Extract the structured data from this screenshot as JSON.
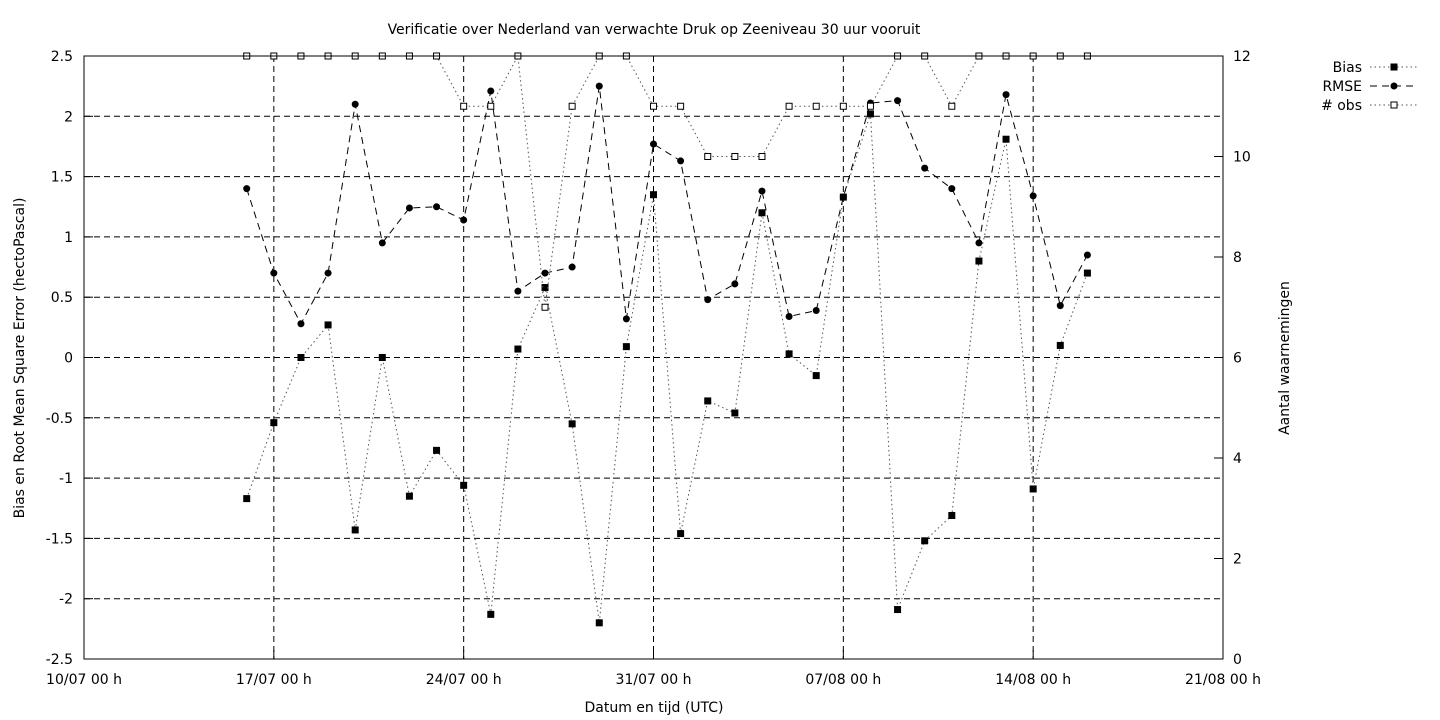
{
  "chart_data": {
    "type": "line",
    "title": "Verificatie over Nederland van verwachte Druk op Zeeniveau 30 uur vooruit",
    "xlabel": "Datum en tijd (UTC)",
    "ylabel": "Bias en Root Mean Square Error (hectoPascal)",
    "y2label": "Aantal waarnemingen",
    "x_unit": "days",
    "xlim": [
      0,
      42
    ],
    "ylim": [
      -2.5,
      2.5
    ],
    "y2lim": [
      0,
      12
    ],
    "x_ticks": [
      {
        "x": 0,
        "label": "10/07 00 h"
      },
      {
        "x": 7,
        "label": "17/07 00 h"
      },
      {
        "x": 14,
        "label": "24/07 00 h"
      },
      {
        "x": 21,
        "label": "31/07 00 h"
      },
      {
        "x": 28,
        "label": "07/08 00 h"
      },
      {
        "x": 35,
        "label": "14/08 00 h"
      },
      {
        "x": 42,
        "label": "21/08 00 h"
      }
    ],
    "y_ticks": [
      {
        "v": -2.5,
        "label": "-2.5"
      },
      {
        "v": -2,
        "label": "-2"
      },
      {
        "v": -1.5,
        "label": "-1.5"
      },
      {
        "v": -1,
        "label": "-1"
      },
      {
        "v": -0.5,
        "label": "-0.5"
      },
      {
        "v": 0,
        "label": "0"
      },
      {
        "v": 0.5,
        "label": "0.5"
      },
      {
        "v": 1,
        "label": "1"
      },
      {
        "v": 1.5,
        "label": "1.5"
      },
      {
        "v": 2,
        "label": "2"
      },
      {
        "v": 2.5,
        "label": "2.5"
      }
    ],
    "y2_ticks": [
      {
        "v": 0,
        "label": "0"
      },
      {
        "v": 2,
        "label": "2"
      },
      {
        "v": 4,
        "label": "4"
      },
      {
        "v": 6,
        "label": "6"
      },
      {
        "v": 8,
        "label": "8"
      },
      {
        "v": 10,
        "label": "10"
      },
      {
        "v": 12,
        "label": "12"
      }
    ],
    "grid": true,
    "legend_position": "top-right outside",
    "x": [
      6,
      7,
      8,
      9,
      10,
      11,
      12,
      13,
      14,
      15,
      16,
      17,
      18,
      19,
      20,
      21,
      22,
      23,
      24,
      25,
      26,
      27,
      28,
      29,
      30,
      31,
      32,
      33,
      34,
      35,
      36,
      37
    ],
    "series": [
      {
        "name": "Bias",
        "axis": "left",
        "style": "dotted",
        "marker": "filled-square",
        "values": [
          -1.17,
          -0.54,
          0.0,
          0.27,
          -1.43,
          0.0,
          -1.15,
          -0.77,
          -1.06,
          -2.13,
          0.07,
          0.58,
          -0.55,
          -2.2,
          0.09,
          1.35,
          -1.46,
          -0.36,
          -0.46,
          1.2,
          0.03,
          -0.15,
          1.33,
          2.02,
          -2.09,
          -1.52,
          -1.31,
          0.8,
          1.81,
          -1.09,
          0.1,
          0.7
        ]
      },
      {
        "name": "RMSE",
        "axis": "left",
        "style": "dashed",
        "marker": "filled-circle",
        "values": [
          1.4,
          0.7,
          0.28,
          0.7,
          2.1,
          0.95,
          1.24,
          1.25,
          1.14,
          2.21,
          0.55,
          0.7,
          0.75,
          2.25,
          0.32,
          1.77,
          1.63,
          0.48,
          0.61,
          1.38,
          0.34,
          0.39,
          1.33,
          2.11,
          2.13,
          1.57,
          1.4,
          0.95,
          2.18,
          1.34,
          0.43,
          0.85
        ]
      },
      {
        "name": "# obs",
        "axis": "right",
        "style": "dotted",
        "marker": "open-square",
        "values": [
          12,
          12,
          12,
          12,
          12,
          12,
          12,
          12,
          11,
          11,
          12,
          7,
          11,
          12,
          12,
          11,
          11,
          10,
          10,
          10,
          11,
          11,
          11,
          11,
          12,
          12,
          11,
          12,
          12,
          12,
          12,
          12
        ]
      }
    ]
  }
}
